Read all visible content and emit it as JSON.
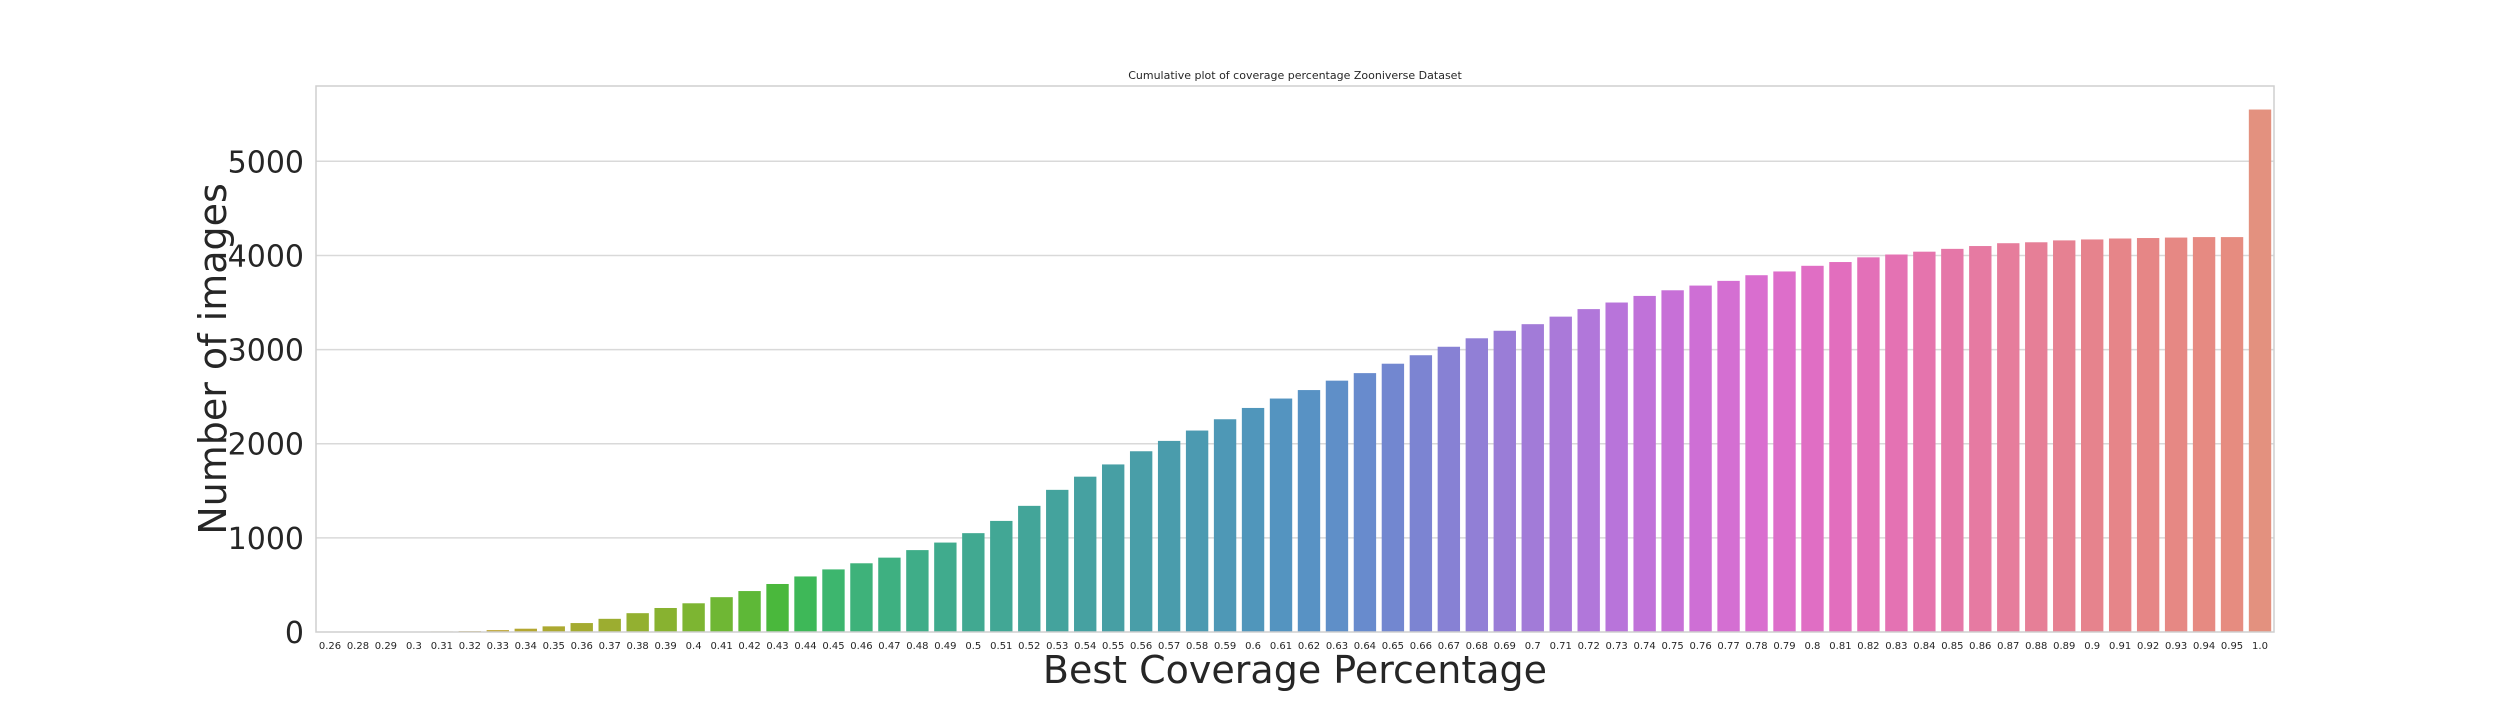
{
  "chart_data": {
    "type": "bar",
    "title": "Cumulative plot of coverage percentage Zooniverse Dataset",
    "xlabel": "Best Coverage Percentage",
    "ylabel": "Number of images",
    "ylim": [
      0,
      5800
    ],
    "yticks": [
      "0",
      "1000",
      "2000",
      "3000",
      "4000",
      "5000"
    ],
    "grid": "y",
    "categories": [
      "0.26",
      "0.28",
      "0.29",
      "0.3",
      "0.31",
      "0.32",
      "0.33",
      "0.34",
      "0.35",
      "0.36",
      "0.37",
      "0.38",
      "0.39",
      "0.4",
      "0.41",
      "0.42",
      "0.43",
      "0.44",
      "0.45",
      "0.46",
      "0.47",
      "0.48",
      "0.49",
      "0.5",
      "0.51",
      "0.52",
      "0.53",
      "0.54",
      "0.55",
      "0.56",
      "0.57",
      "0.58",
      "0.59",
      "0.6",
      "0.61",
      "0.62",
      "0.63",
      "0.64",
      "0.65",
      "0.66",
      "0.67",
      "0.68",
      "0.69",
      "0.7",
      "0.71",
      "0.72",
      "0.73",
      "0.74",
      "0.75",
      "0.76",
      "0.77",
      "0.78",
      "0.79",
      "0.8",
      "0.81",
      "0.82",
      "0.83",
      "0.84",
      "0.85",
      "0.86",
      "0.87",
      "0.88",
      "0.89",
      "0.9",
      "0.91",
      "0.92",
      "0.93",
      "0.94",
      "0.95",
      "1.0"
    ],
    "values": [
      1,
      2,
      3,
      4,
      6,
      9,
      20,
      35,
      60,
      95,
      140,
      200,
      255,
      305,
      370,
      435,
      510,
      590,
      665,
      730,
      790,
      870,
      950,
      1050,
      1180,
      1340,
      1510,
      1650,
      1780,
      1920,
      2030,
      2140,
      2260,
      2380,
      2480,
      2570,
      2670,
      2750,
      2850,
      2940,
      3030,
      3120,
      3200,
      3270,
      3350,
      3430,
      3500,
      3570,
      3630,
      3680,
      3730,
      3790,
      3830,
      3890,
      3930,
      3980,
      4010,
      4040,
      4070,
      4100,
      4130,
      4140,
      4160,
      4170,
      4180,
      4185,
      4190,
      4195,
      4195,
      5550
    ],
    "colors": [
      "#e2927f",
      "#dd9364",
      "#d69643",
      "#d29a37",
      "#cb9e34",
      "#c4a233",
      "#bca433",
      "#b4a731",
      "#aca931",
      "#a4ab31",
      "#9cad30",
      "#93b030",
      "#88b230",
      "#7db532",
      "#6fb734",
      "#5eb837",
      "#4ab83c",
      "#3eb858",
      "#3db66e",
      "#3eb27a",
      "#3eb081",
      "#3fad88",
      "#40ab8d",
      "#41a991",
      "#42a795",
      "#43a599",
      "#44a39d",
      "#46a1a1",
      "#479fa4",
      "#499ea8",
      "#4a9cac",
      "#4c9ab1",
      "#4e98b6",
      "#5096bb",
      "#5494c0",
      "#5892c4",
      "#5f8fc8",
      "#688bcd",
      "#7287d0",
      "#7c84d2",
      "#8781d4",
      "#917fd6",
      "#9a7dd7",
      "#a27bd8",
      "#aa79d9",
      "#b177da",
      "#b874da",
      "#c072d9",
      "#c770d7",
      "#ce6fd5",
      "#d46fd2",
      "#d96ecf",
      "#dd6eca",
      "#e06ec4",
      "#e26ebe",
      "#e370b8",
      "#e472b3",
      "#e574ad",
      "#e577a8",
      "#e67aa2",
      "#e67d9c",
      "#e67f97",
      "#e68192",
      "#e6838d",
      "#e68589",
      "#e68686",
      "#e68884",
      "#e68a82",
      "#e68c80",
      "#e3917f"
    ]
  }
}
